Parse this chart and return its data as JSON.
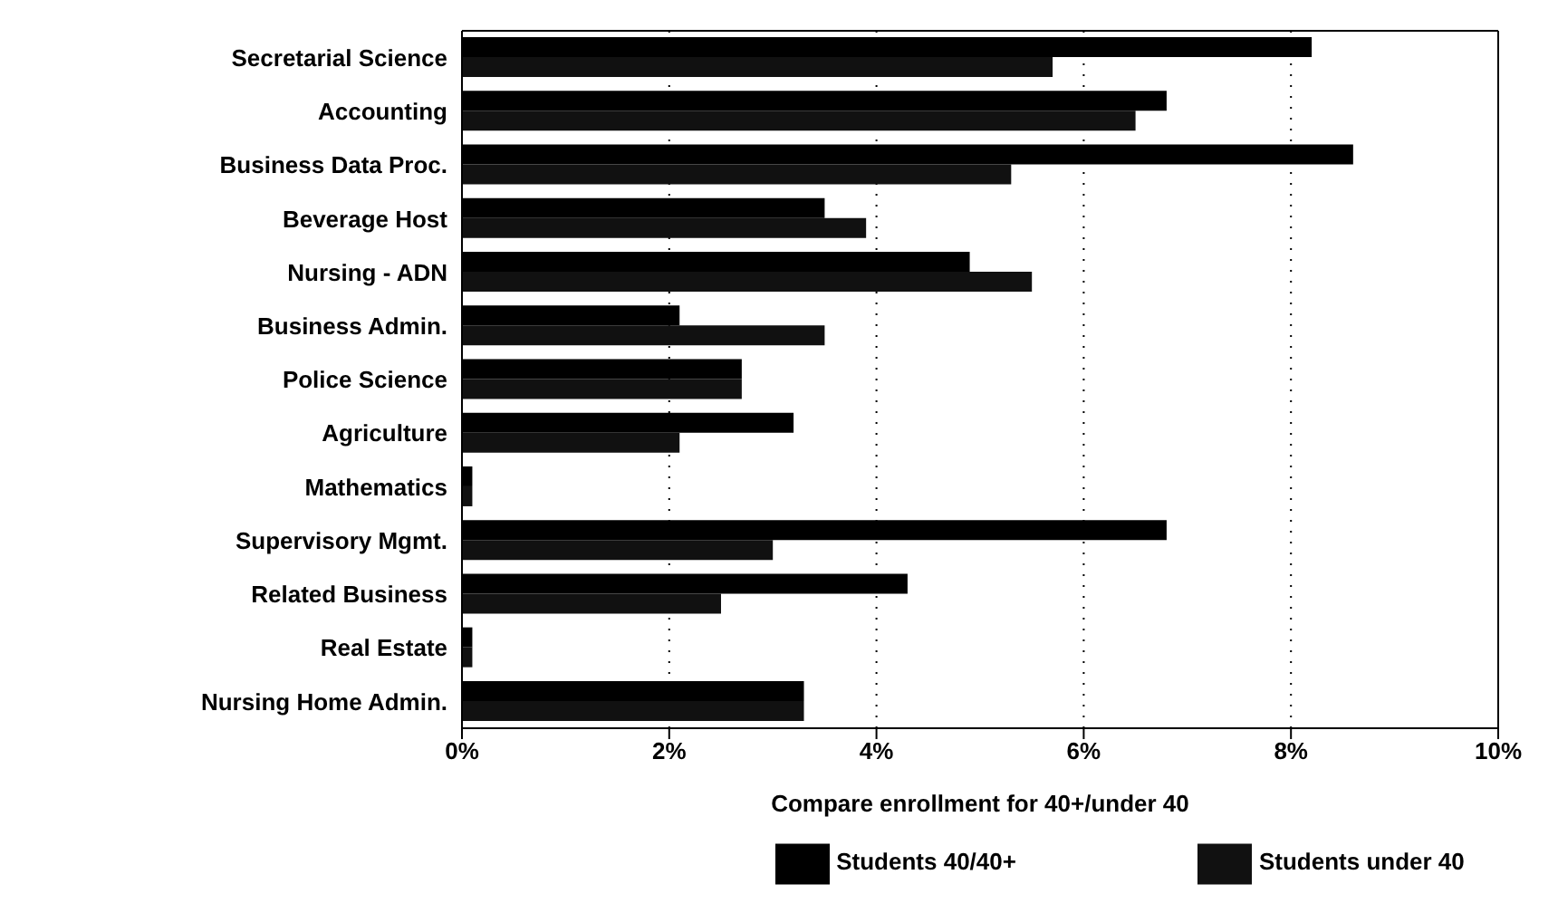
{
  "chart_data": {
    "type": "bar",
    "orientation": "horizontal",
    "xlabel": "Compare enrollment for 40+/under 40",
    "categories": [
      "Secretarial Science",
      "Accounting",
      "Business Data Proc.",
      "Beverage Host",
      "Nursing - ADN",
      "Business Admin.",
      "Police Science",
      "Agriculture",
      "Mathematics",
      "Supervisory Mgmt.",
      "Related Business",
      "Real Estate",
      "Nursing Home Admin."
    ],
    "series": [
      {
        "name": "Students 40/40+",
        "color": "#000000",
        "values": [
          8.2,
          6.8,
          8.6,
          3.5,
          4.9,
          2.1,
          2.7,
          3.2,
          0.1,
          6.8,
          4.3,
          0.1,
          3.3
        ]
      },
      {
        "name": "Students under 40",
        "color": "#111111",
        "values": [
          5.7,
          6.5,
          5.3,
          3.9,
          5.5,
          3.5,
          2.7,
          2.1,
          0.1,
          3.0,
          2.5,
          0.1,
          3.3
        ]
      }
    ],
    "xlim": [
      0,
      10
    ],
    "xticks": [
      {
        "value": 0,
        "label": "0%"
      },
      {
        "value": 2,
        "label": "2%"
      },
      {
        "value": 4,
        "label": "4%"
      },
      {
        "value": 6,
        "label": "6%"
      },
      {
        "value": 8,
        "label": "8%"
      },
      {
        "value": 10,
        "label": "10%"
      }
    ],
    "grid": "x",
    "legend": "bottom"
  }
}
